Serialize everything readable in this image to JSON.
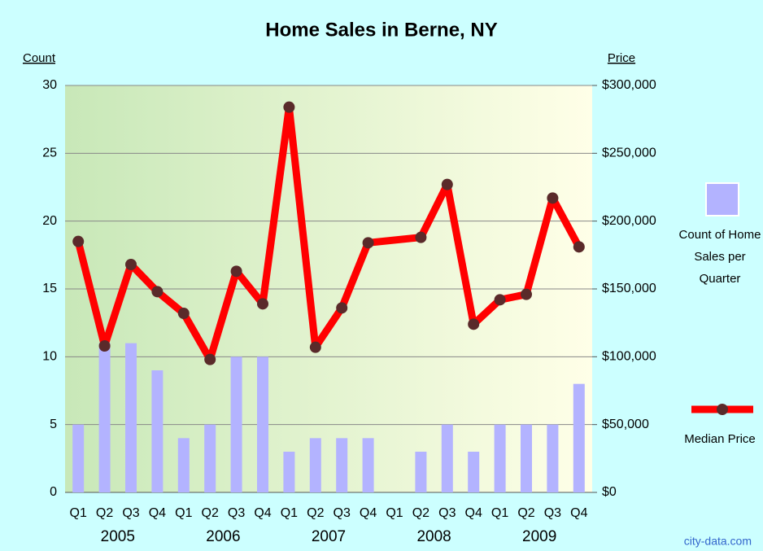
{
  "chart_data": {
    "type": "bar_line",
    "title": "Home Sales in Berne, NY",
    "y_label": "Count",
    "y2_label": "Price",
    "categories": [
      "Q1",
      "Q2",
      "Q3",
      "Q4",
      "Q1",
      "Q2",
      "Q3",
      "Q4",
      "Q1",
      "Q2",
      "Q3",
      "Q4",
      "Q1",
      "Q2",
      "Q3",
      "Q4",
      "Q1",
      "Q2",
      "Q3",
      "Q4"
    ],
    "years": [
      "2005",
      "2006",
      "2007",
      "2008",
      "2009"
    ],
    "series": [
      {
        "name": "Count of Home Sales per Quarter",
        "type": "bar",
        "color": "#b3b3ff",
        "values": [
          5,
          11,
          11,
          9,
          4,
          5,
          10,
          10,
          3,
          4,
          4,
          4,
          0,
          3,
          5,
          3,
          5,
          5,
          5,
          8
        ]
      },
      {
        "name": "Median Price",
        "type": "line",
        "axis": "y2",
        "color": "#ff0000",
        "marker_color": "#5a2a2a",
        "values": [
          185000,
          108000,
          168000,
          148000,
          132000,
          98000,
          163000,
          139000,
          284000,
          107000,
          136000,
          184000,
          null,
          188000,
          227000,
          124000,
          142000,
          146000,
          217000,
          181000
        ]
      }
    ],
    "ylim": [
      0,
      30
    ],
    "yticks": [
      0,
      5,
      10,
      15,
      20,
      25,
      30
    ],
    "y2lim": [
      0,
      300000
    ],
    "y2ticks": [
      {
        "value": 0,
        "label": "$0"
      },
      {
        "value": 50000,
        "label": "$50,000"
      },
      {
        "value": 100000,
        "label": "$100,000"
      },
      {
        "value": 150000,
        "label": "$150,000"
      },
      {
        "value": 200000,
        "label": "$200,000"
      },
      {
        "value": 250000,
        "label": "$250,000"
      },
      {
        "value": 300000,
        "label": "$300,000"
      }
    ],
    "grid": true,
    "legend": "right",
    "watermark": "city-data.com"
  }
}
